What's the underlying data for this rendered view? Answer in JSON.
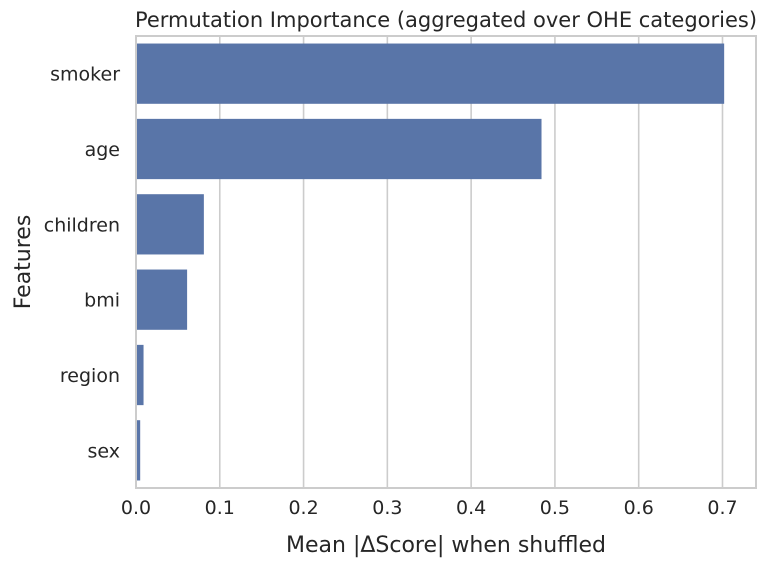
{
  "chart_data": {
    "type": "bar",
    "orientation": "horizontal",
    "title": "Permutation Importance (aggregated over OHE categories)",
    "xlabel": "Mean |ΔScore| when shuffled",
    "ylabel": "Features",
    "categories": [
      "smoker",
      "age",
      "children",
      "bmi",
      "region",
      "sex"
    ],
    "values": [
      0.702,
      0.484,
      0.081,
      0.061,
      0.009,
      0.005
    ],
    "xlim": [
      0,
      0.74
    ],
    "xticks": [
      0.0,
      0.1,
      0.2,
      0.3,
      0.4,
      0.5,
      0.6,
      0.7
    ],
    "xtick_labels": [
      "0.0",
      "0.1",
      "0.2",
      "0.3",
      "0.4",
      "0.5",
      "0.6",
      "0.7"
    ],
    "grid": true,
    "bar_color": "#5975a8",
    "grid_color": "#cccccc",
    "frame_color": "#cccccc"
  }
}
